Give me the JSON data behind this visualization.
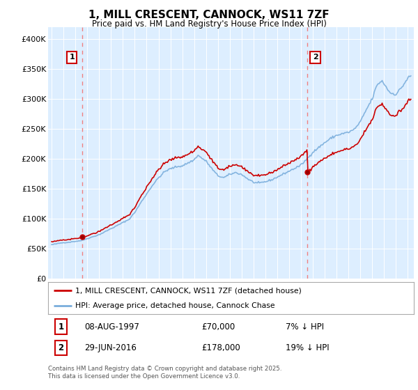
{
  "title": "1, MILL CRESCENT, CANNOCK, WS11 7ZF",
  "subtitle": "Price paid vs. HM Land Registry's House Price Index (HPI)",
  "ylim": [
    0,
    420000
  ],
  "yticks": [
    0,
    50000,
    100000,
    150000,
    200000,
    250000,
    300000,
    350000,
    400000
  ],
  "ytick_labels": [
    "£0",
    "£50K",
    "£100K",
    "£150K",
    "£200K",
    "£250K",
    "£300K",
    "£350K",
    "£400K"
  ],
  "hpi_color": "#7aaedc",
  "price_color": "#cc0000",
  "dashed_color": "#f08080",
  "bg_color": "#ffffff",
  "plot_bg_color": "#ddeeff",
  "grid_color": "#ffffff",
  "sale1_x": 1997.6,
  "sale1_price": 70000,
  "sale2_x": 2016.5,
  "sale2_price": 178000,
  "legend_label1": "1, MILL CRESCENT, CANNOCK, WS11 7ZF (detached house)",
  "legend_label2": "HPI: Average price, detached house, Cannock Chase",
  "footnote": "Contains HM Land Registry data © Crown copyright and database right 2025.\nThis data is licensed under the Open Government Licence v3.0.",
  "xlim_start": 1994.7,
  "xlim_end": 2025.5,
  "sale1_date_str": "08-AUG-1997",
  "sale2_date_str": "29-JUN-2016",
  "sale1_hpi_pct": "7% ↓ HPI",
  "sale2_hpi_pct": "19% ↓ HPI"
}
